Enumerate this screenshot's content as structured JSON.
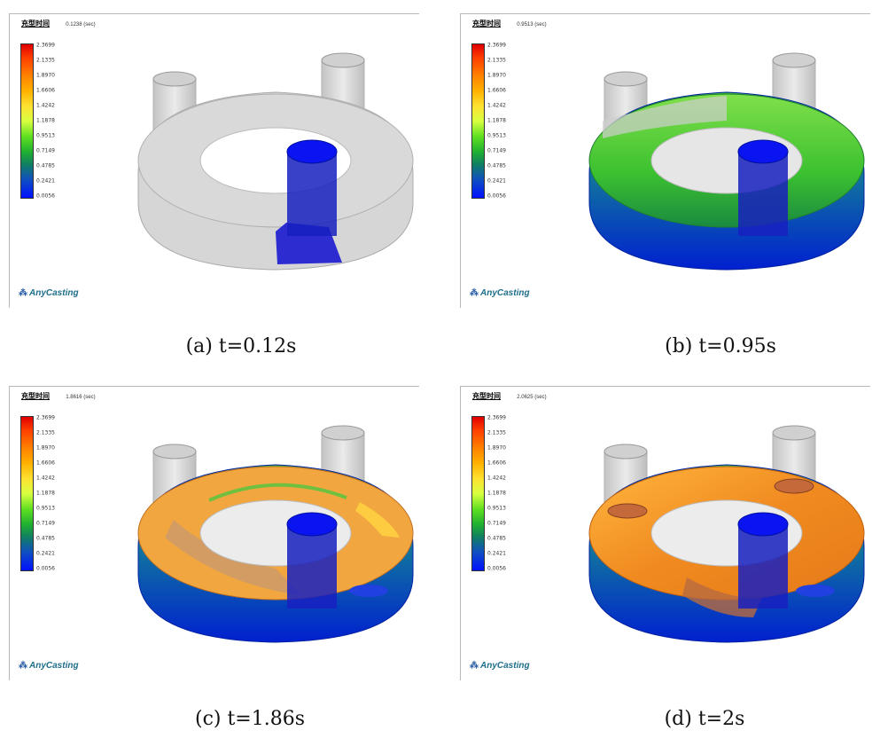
{
  "legend_ticks": [
    "2.3699",
    "2.1335",
    "1.8970",
    "1.6606",
    "1.4242",
    "1.1878",
    "0.9513",
    "0.7149",
    "0.4785",
    "0.2421",
    "0.0056"
  ],
  "brand": "AnyCasting",
  "colors": {
    "legend_top": "#e00000",
    "legend_bottom": "#0010ff",
    "mold": "#d9d9d9",
    "sprue": "#1010e0",
    "logo": "#1e6e8a"
  },
  "panels": [
    {
      "label": "充型时间",
      "time": "0.1238 (sec)",
      "caption": "(a) t=0.12s"
    },
    {
      "label": "充型时间",
      "time": "0.9513 (sec)",
      "caption": "(b) t=0.95s"
    },
    {
      "label": "充型时间",
      "time": "1.8616 (sec)",
      "caption": "(c) t=1.86s"
    },
    {
      "label": "充型时间",
      "time": "2.0625 (sec)",
      "caption": "(d) t=2s"
    }
  ]
}
